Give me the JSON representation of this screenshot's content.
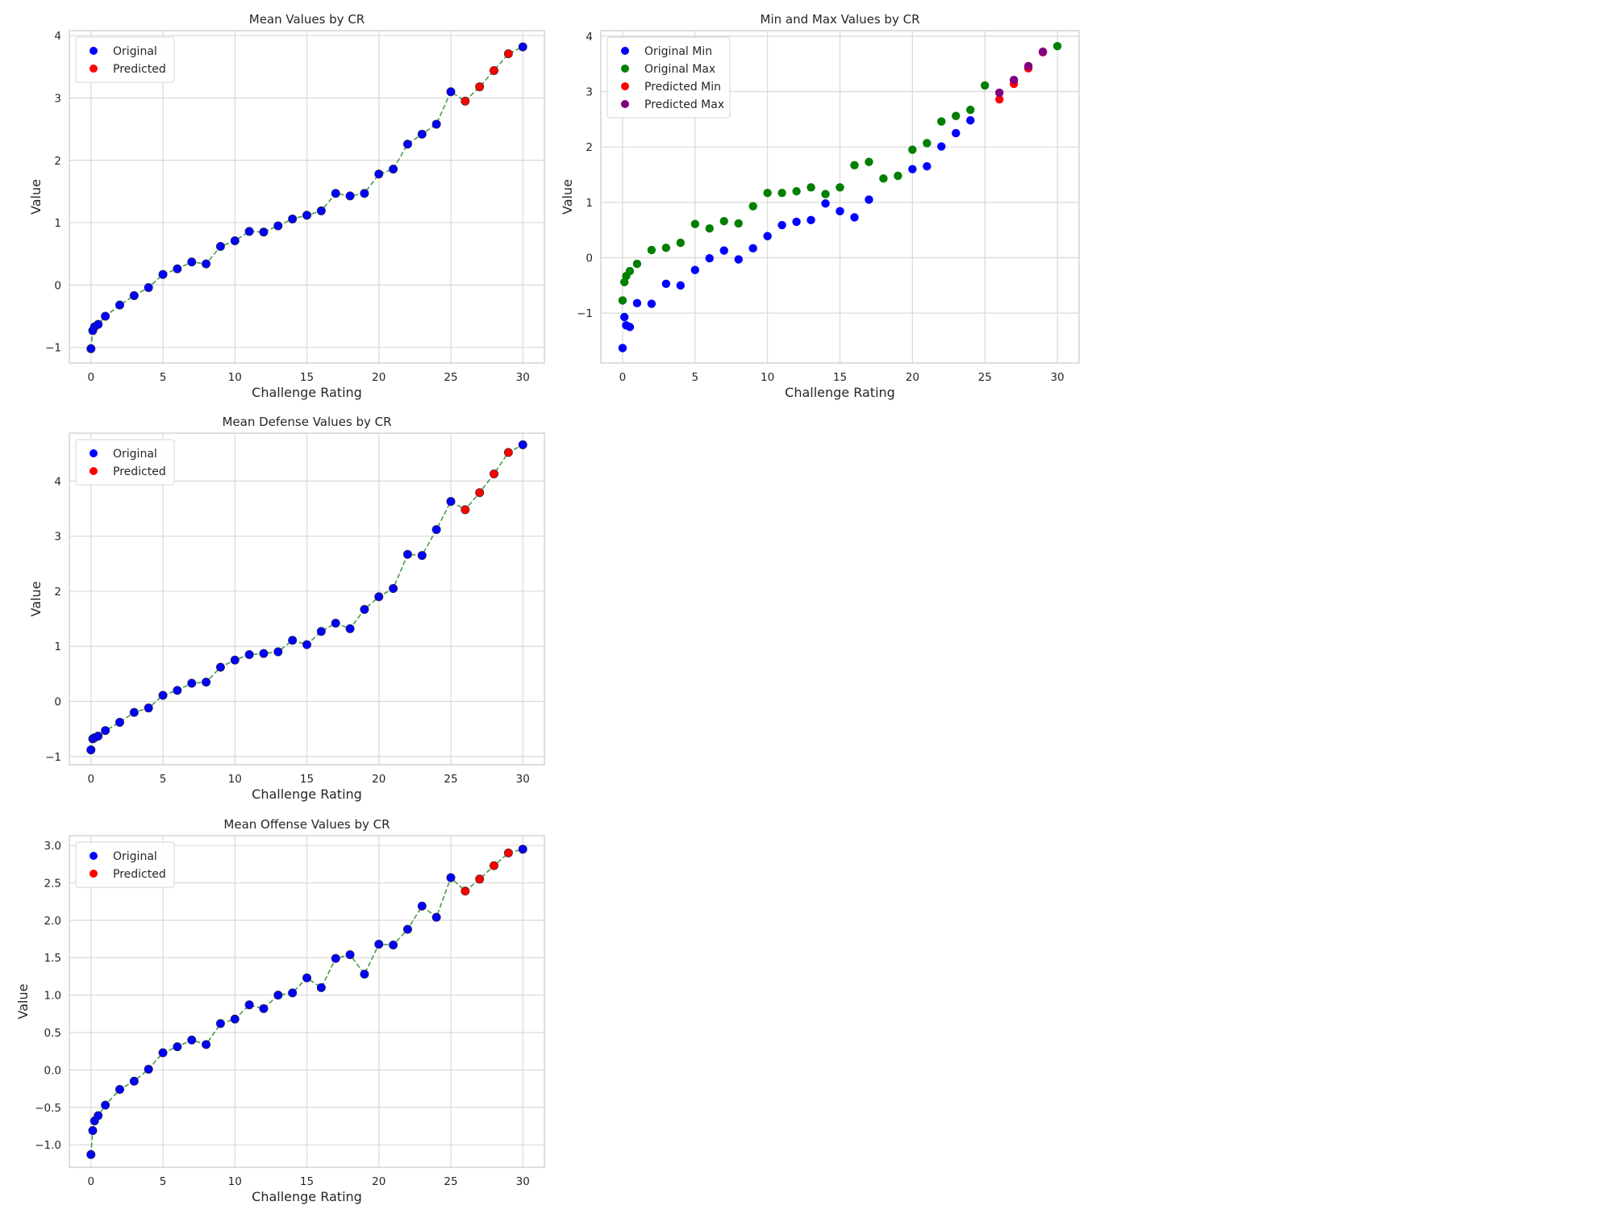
{
  "chart_data": [
    {
      "type": "scatter",
      "title": "Mean Values by CR",
      "xlabel": "Challenge Rating",
      "ylabel": "Value",
      "xlim": [
        -1.5,
        31.5
      ],
      "ylim": [
        -1.25,
        4.08
      ],
      "xticks": [
        0,
        5,
        10,
        15,
        20,
        25,
        30
      ],
      "yticks": [
        -1,
        0,
        1,
        2,
        3,
        4
      ],
      "grid": true,
      "legend": "top-left",
      "line": {
        "style": "dashed",
        "color": "#4a9a4a"
      },
      "series": [
        {
          "name": "Original",
          "color": "#0000ff",
          "x": [
            0,
            0.125,
            0.25,
            0.5,
            1,
            2,
            3,
            4,
            5,
            6,
            7,
            8,
            9,
            10,
            11,
            12,
            13,
            14,
            15,
            16,
            17,
            18,
            19,
            20,
            21,
            22,
            23,
            24,
            25,
            30
          ],
          "y": [
            -1.02,
            -0.73,
            -0.67,
            -0.63,
            -0.5,
            -0.32,
            -0.17,
            -0.04,
            0.17,
            0.26,
            0.37,
            0.34,
            0.62,
            0.71,
            0.86,
            0.85,
            0.95,
            1.06,
            1.12,
            1.19,
            1.47,
            1.43,
            1.47,
            1.78,
            1.86,
            2.26,
            2.42,
            2.58,
            3.1,
            3.82
          ]
        },
        {
          "name": "Predicted",
          "color": "#ff0000",
          "x": [
            26,
            27,
            28,
            29
          ],
          "y": [
            2.95,
            3.18,
            3.44,
            3.71
          ]
        }
      ]
    },
    {
      "type": "scatter",
      "title": "Min and Max Values by CR",
      "xlabel": "Challenge Rating",
      "ylabel": "Value",
      "xlim": [
        -1.5,
        31.5
      ],
      "ylim": [
        -1.9,
        4.1
      ],
      "xticks": [
        0,
        5,
        10,
        15,
        20,
        25,
        30
      ],
      "yticks": [
        -1,
        0,
        1,
        2,
        3,
        4
      ],
      "grid": true,
      "legend": "top-left",
      "series": [
        {
          "name": "Original Min",
          "color": "#0000ff",
          "x": [
            0,
            0.125,
            0.25,
            0.5,
            1,
            2,
            3,
            4,
            5,
            6,
            7,
            8,
            9,
            10,
            11,
            12,
            13,
            14,
            15,
            16,
            17,
            20,
            21,
            22,
            23,
            24
          ],
          "y": [
            -1.63,
            -1.07,
            -1.22,
            -1.25,
            -0.82,
            -0.83,
            -0.47,
            -0.5,
            -0.22,
            -0.01,
            0.13,
            -0.03,
            0.17,
            0.39,
            0.59,
            0.65,
            0.68,
            0.98,
            0.84,
            0.73,
            1.05,
            1.6,
            1.65,
            2.01,
            2.25,
            2.48
          ]
        },
        {
          "name": "Original Max",
          "color": "#007f00",
          "x": [
            0,
            0.125,
            0.25,
            0.5,
            1,
            2,
            3,
            4,
            5,
            6,
            7,
            8,
            9,
            10,
            11,
            12,
            13,
            14,
            15,
            16,
            17,
            18,
            19,
            20,
            21,
            22,
            23,
            24,
            25,
            30
          ],
          "y": [
            -0.77,
            -0.44,
            -0.33,
            -0.24,
            -0.11,
            0.14,
            0.18,
            0.27,
            0.61,
            0.53,
            0.66,
            0.62,
            0.93,
            1.17,
            1.17,
            1.2,
            1.27,
            1.15,
            1.27,
            1.67,
            1.73,
            1.43,
            1.48,
            1.95,
            2.07,
            2.46,
            2.56,
            2.67,
            3.11,
            3.82
          ]
        },
        {
          "name": "Predicted Min",
          "color": "#ff0000",
          "x": [
            26,
            27,
            28,
            29
          ],
          "y": [
            2.86,
            3.14,
            3.42,
            3.71
          ]
        },
        {
          "name": "Predicted Max",
          "color": "#800080",
          "x": [
            26,
            27,
            28,
            29
          ],
          "y": [
            2.98,
            3.21,
            3.46,
            3.72
          ]
        }
      ]
    },
    {
      "type": "scatter",
      "title": "Mean Defense Values by CR",
      "xlabel": "Challenge Rating",
      "ylabel": "Value",
      "xlim": [
        -1.5,
        31.5
      ],
      "ylim": [
        -1.15,
        4.87
      ],
      "xticks": [
        0,
        5,
        10,
        15,
        20,
        25,
        30
      ],
      "yticks": [
        -1,
        0,
        1,
        2,
        3,
        4
      ],
      "grid": true,
      "legend": "top-left",
      "line": {
        "style": "dashed",
        "color": "#4a9a4a"
      },
      "series": [
        {
          "name": "Original",
          "color": "#0000ff",
          "x": [
            0,
            0.125,
            0.25,
            0.5,
            1,
            2,
            3,
            4,
            5,
            6,
            7,
            8,
            9,
            10,
            11,
            12,
            13,
            14,
            15,
            16,
            17,
            18,
            19,
            20,
            21,
            22,
            23,
            24,
            25,
            30
          ],
          "y": [
            -0.88,
            -0.68,
            -0.66,
            -0.63,
            -0.53,
            -0.38,
            -0.2,
            -0.12,
            0.11,
            0.2,
            0.33,
            0.35,
            0.62,
            0.75,
            0.85,
            0.87,
            0.9,
            1.11,
            1.03,
            1.27,
            1.42,
            1.32,
            1.67,
            1.9,
            2.05,
            2.67,
            2.65,
            3.12,
            3.63,
            4.66
          ]
        },
        {
          "name": "Predicted",
          "color": "#ff0000",
          "x": [
            26,
            27,
            28,
            29
          ],
          "y": [
            3.48,
            3.79,
            4.13,
            4.52
          ]
        }
      ]
    },
    {
      "type": "scatter",
      "title": "Mean Offense Values by CR",
      "xlabel": "Challenge Rating",
      "ylabel": "Value",
      "xlim": [
        -1.5,
        31.5
      ],
      "ylim": [
        -1.3,
        3.13
      ],
      "xticks": [
        0,
        5,
        10,
        15,
        20,
        25,
        30
      ],
      "yticks": [
        -1.0,
        -0.5,
        0.0,
        0.5,
        1.0,
        1.5,
        2.0,
        2.5,
        3.0
      ],
      "grid": true,
      "legend": "top-left",
      "line": {
        "style": "dashed",
        "color": "#4a9a4a"
      },
      "series": [
        {
          "name": "Original",
          "color": "#0000ff",
          "x": [
            0,
            0.125,
            0.25,
            0.5,
            1,
            2,
            3,
            4,
            5,
            6,
            7,
            8,
            9,
            10,
            11,
            12,
            13,
            14,
            15,
            16,
            17,
            18,
            19,
            20,
            21,
            22,
            23,
            24,
            25,
            30
          ],
          "y": [
            -1.13,
            -0.81,
            -0.68,
            -0.61,
            -0.47,
            -0.26,
            -0.15,
            0.01,
            0.23,
            0.31,
            0.4,
            0.34,
            0.62,
            0.68,
            0.87,
            0.82,
            1.0,
            1.03,
            1.23,
            1.1,
            1.49,
            1.54,
            1.28,
            1.68,
            1.67,
            1.88,
            2.19,
            2.04,
            2.57,
            2.95
          ]
        },
        {
          "name": "Predicted",
          "color": "#ff0000",
          "x": [
            26,
            27,
            28,
            29
          ],
          "y": [
            2.39,
            2.55,
            2.73,
            2.9
          ]
        }
      ]
    }
  ]
}
